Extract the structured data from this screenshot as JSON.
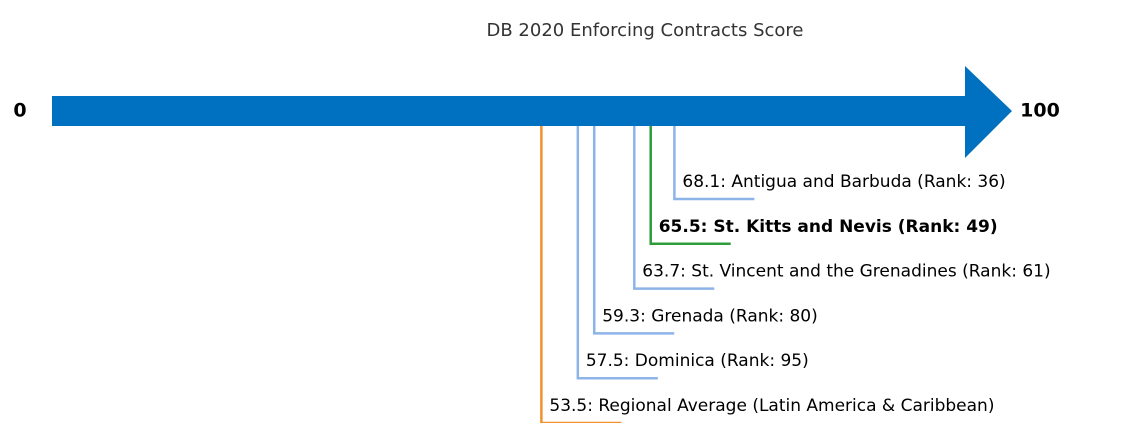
{
  "chart_data": {
    "type": "number-line",
    "title": "DB 2020 Enforcing Contracts Score",
    "xlim": [
      0,
      100
    ],
    "xticks": [
      0,
      100
    ],
    "axis_color": "#0070c0",
    "highlight": 1,
    "points": [
      {
        "label": "68.1: Antigua and Barbuda (Rank: 36)",
        "value": 68.1,
        "color": "#8db4e8"
      },
      {
        "label": "65.5: St. Kitts and Nevis (Rank: 49)",
        "value": 65.5,
        "color": "#2e9c3b"
      },
      {
        "label": "63.7: St. Vincent and the Grenadines (Rank: 61)",
        "value": 63.7,
        "color": "#8db4e8"
      },
      {
        "label": "59.3: Grenada (Rank: 80)",
        "value": 59.3,
        "color": "#8db4e8"
      },
      {
        "label": "57.5: Dominica (Rank: 95)",
        "value": 57.5,
        "color": "#8db4e8"
      },
      {
        "label": "53.5: Regional Average (Latin America & Caribbean)",
        "value": 53.5,
        "color": "#f0922e"
      }
    ]
  }
}
